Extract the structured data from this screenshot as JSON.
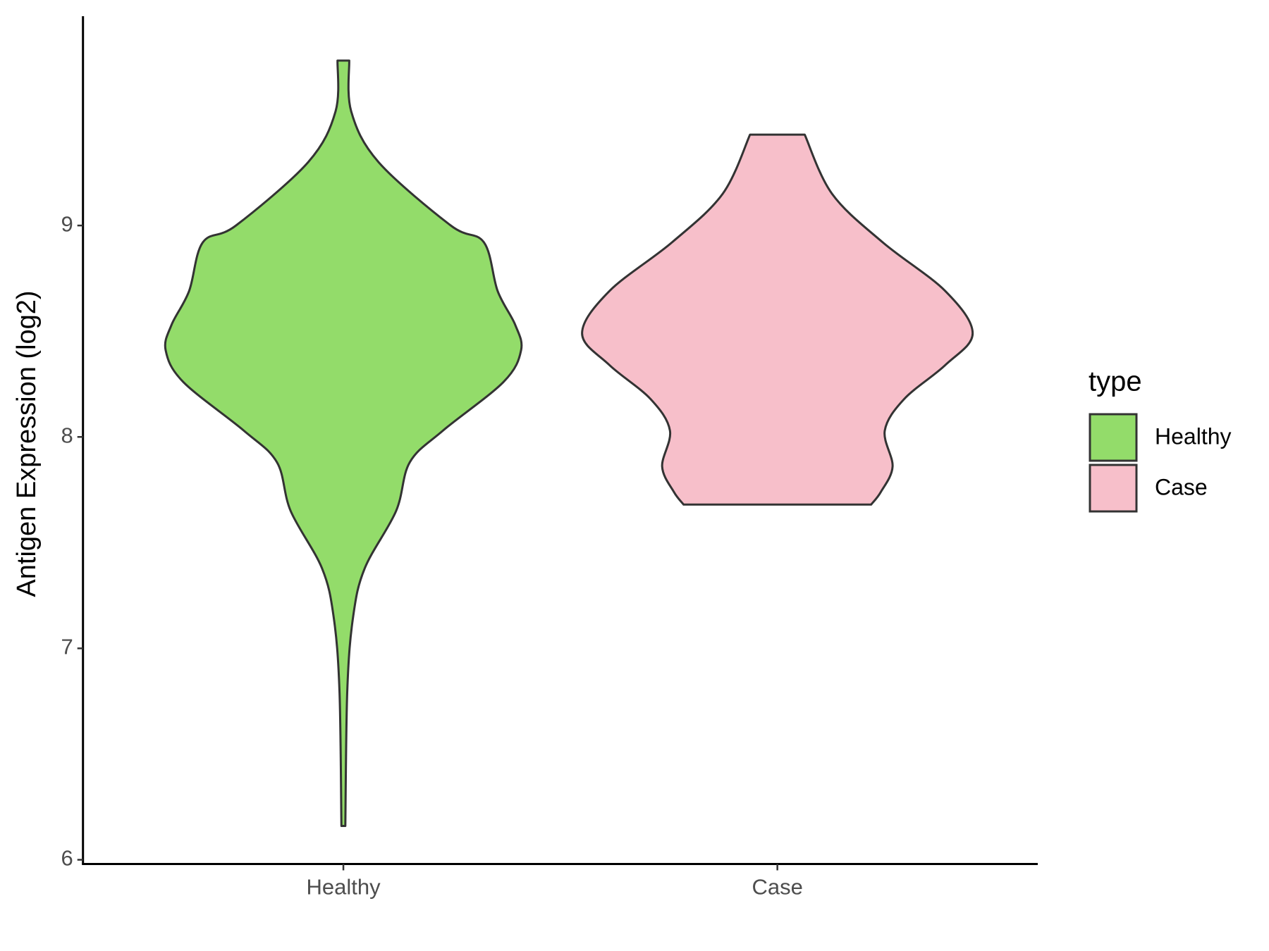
{
  "chart_data": {
    "type": "violin",
    "y_label": "Antigen Expression (log2)",
    "legend_title": "type",
    "legend_position": "right",
    "categories": [
      "Healthy",
      "Case"
    ],
    "series": [
      {
        "name": "Healthy",
        "color": "#93dc6a",
        "y": [
          9.78,
          9.54,
          9.3,
          9.0,
          8.92,
          8.69,
          8.53,
          8.41,
          8.26,
          8.03,
          7.88,
          7.65,
          7.38,
          7.15,
          6.8,
          6.16
        ],
        "density": [
          0.03,
          0.04,
          0.18,
          0.55,
          0.72,
          0.79,
          0.88,
          0.91,
          0.82,
          0.51,
          0.34,
          0.27,
          0.11,
          0.05,
          0.02,
          0.01
        ]
      },
      {
        "name": "Case",
        "color": "#f7bfca",
        "y": [
          9.43,
          9.15,
          8.92,
          8.69,
          8.49,
          8.34,
          8.18,
          8.03,
          7.86,
          7.74,
          7.68
        ],
        "density": [
          0.14,
          0.28,
          0.54,
          0.86,
          1.0,
          0.86,
          0.65,
          0.55,
          0.59,
          0.53,
          0.48
        ]
      }
    ],
    "ylim": [
      5.98,
      9.99
    ],
    "yticks": [
      6,
      7,
      8,
      9
    ]
  }
}
